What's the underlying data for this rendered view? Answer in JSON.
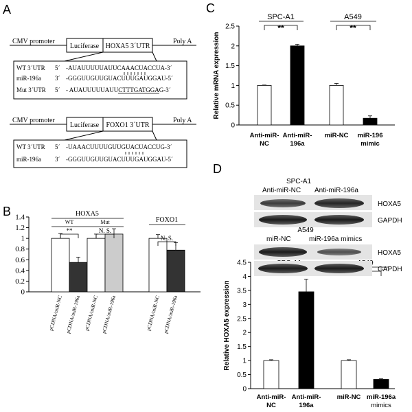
{
  "panel_labels": {
    "A": "A",
    "B": "B",
    "C": "C",
    "D": "D"
  },
  "panelA": {
    "construct1": {
      "cmv": "CMV promoter",
      "luciferase": "Luciferase",
      "utr": "HOXA5 3´UTR",
      "polya": "Poly A"
    },
    "construct2": {
      "cmv": "CMV promoter",
      "luciferase": "Luciferase",
      "utr": "FOXO1 3´UTR",
      "polya": "Poly A"
    },
    "box1": [
      {
        "label": "WT 3´UTR",
        "dir": "5´",
        "seq": "-AUAUUUUUAUUCAAACUACCUA-3´"
      },
      {
        "label": "miR-196a",
        "dir": "3´",
        "seq": "-GGGUUGUUGUACUUUGAUGGAU-5´"
      },
      {
        "label": "Mut 3´UTR",
        "dir": "5´",
        "seq": "- AUAUUUUUAUUCTTTGATGGAG-3´"
      }
    ],
    "box2": [
      {
        "label": "WT 3´UTR",
        "dir": "5´",
        "seq": "-UAAACUUUUGUUGUACUACCUG-3´"
      },
      {
        "label": "miR-196a",
        "dir": "3´",
        "seq": "-GGGUUGUUGUACUUUGAUGGAU-5´"
      }
    ]
  },
  "chart_data": [
    {
      "id": "B",
      "type": "bar",
      "categories": [
        "pCDNA/miR-NC",
        "pCDNA/miR-196a",
        "pCDNA/miR-NC",
        "pCDNA/miR-196a",
        "pCDNA/miR-NC",
        "pCDNA/miR-196a"
      ],
      "values": [
        1.0,
        0.55,
        1.0,
        1.08,
        1.0,
        0.78
      ],
      "errors": [
        0.09,
        0.1,
        0.08,
        0.1,
        0.07,
        0.14
      ],
      "colors": [
        "#ffffff",
        "#333333",
        "#ffffff",
        "#cccccc",
        "#ffffff",
        "#333333"
      ],
      "ylim": [
        0,
        1.4
      ],
      "yticks": [
        "0",
        "0.2",
        "0.4",
        "0.6",
        "0.8",
        "1",
        "1.2",
        "1.4"
      ],
      "groups": [
        {
          "label": "HOXA5"
        },
        {
          "label": "FOXO1"
        }
      ],
      "subgroups": [
        {
          "label": "WT"
        },
        {
          "label": "Mut"
        }
      ],
      "sig": [
        {
          "label": "**"
        },
        {
          "label": "N. S."
        },
        {
          "label": "N. S."
        }
      ]
    },
    {
      "id": "C",
      "type": "bar",
      "categories": [
        "Anti-miR-NC",
        "Anti-miR-196a",
        "miR-NC",
        "miR-196 mimic"
      ],
      "values": [
        1.0,
        2.0,
        1.0,
        0.17
      ],
      "errors": [
        0.01,
        0.04,
        0.05,
        0.06
      ],
      "colors": [
        "#ffffff",
        "#000000",
        "#ffffff",
        "#000000"
      ],
      "ylim": [
        0,
        2.5
      ],
      "yticks": [
        "0",
        "0.5",
        "1",
        "1.5",
        "2",
        "2.5"
      ],
      "ylabel": "Relative mRNA expression",
      "groups": [
        {
          "label": "SPC-A1"
        },
        {
          "label": "A549"
        }
      ],
      "sig": [
        {
          "label": "**"
        },
        {
          "label": "**"
        }
      ]
    },
    {
      "id": "D",
      "type": "bar",
      "categories": [
        "Anti-miR-NC",
        "Anti-miR-196a",
        "miR-NC",
        "miR-196a mimics"
      ],
      "values": [
        1.0,
        3.45,
        1.0,
        0.33
      ],
      "errors": [
        0.03,
        0.45,
        0.03,
        0.02
      ],
      "colors": [
        "#ffffff",
        "#000000",
        "#ffffff",
        "#000000"
      ],
      "ylim": [
        0,
        4.5
      ],
      "yticks": [
        "0",
        "0.5",
        "1",
        "1.5",
        "2",
        "2.5",
        "3",
        "3.5",
        "4",
        "4.5"
      ],
      "ylabel": "Relative HOXA5 expression",
      "groups": [
        {
          "label": "SPC-A1"
        },
        {
          "label": "A549"
        }
      ],
      "sig": [
        {
          "label": "**"
        },
        {
          "label": "**"
        }
      ]
    }
  ],
  "panelD_blot": {
    "top_title": "SPC-A1",
    "top_lane1": "Anti-miR-NC",
    "top_lane2": "Anti-miR-196a",
    "bot_title": "A549",
    "bot_lane1": "miR-NC",
    "bot_lane2": "miR-196a  mimics",
    "band1": "HOXA5",
    "band2": "GAPDH",
    "band3": "HOXA5",
    "band4": "GAPDH"
  }
}
